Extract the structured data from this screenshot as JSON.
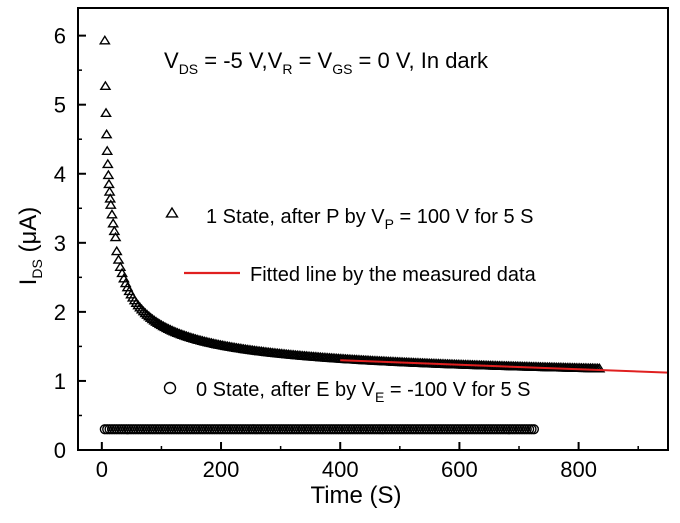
{
  "chart_data": {
    "type": "scatter",
    "annotation": {
      "parts": [
        "V",
        "DS",
        " = -5 V,V",
        "R",
        " = V",
        "GS",
        " = 0 V, In dark"
      ]
    },
    "xlabel": "Time (S)",
    "ylabel": {
      "main": "I",
      "sub": "DS",
      "rest": " (μA)"
    },
    "xlim": [
      -40,
      950
    ],
    "ylim": [
      0,
      6.4
    ],
    "x_ticks": [
      0,
      200,
      400,
      600,
      800
    ],
    "y_ticks": [
      0,
      1,
      2,
      3,
      4,
      5,
      6
    ],
    "legend": [
      {
        "marker": "triangle",
        "parts": [
          "1 State, after P by V",
          "P",
          " = 100 V for 5 S"
        ]
      },
      {
        "marker": "line",
        "color": "#e02020",
        "parts": [
          "Fitted line by the measured data"
        ]
      },
      {
        "marker": "circle",
        "parts": [
          "0 State, after E by V",
          "E",
          " = -100 V for 5 S"
        ]
      }
    ],
    "series": [
      {
        "marker": "triangle",
        "model": {
          "a": 0.9,
          "b": 5.3,
          "t0": 5,
          "p": 0.55
        },
        "x_range": [
          5,
          835
        ],
        "early_points": [
          [
            5,
            5.93
          ],
          [
            6,
            5.27
          ],
          [
            7,
            4.88
          ],
          [
            8,
            4.57
          ],
          [
            9,
            4.33
          ],
          [
            10,
            4.14
          ],
          [
            11,
            3.98
          ],
          [
            12,
            3.85
          ],
          [
            13,
            3.74
          ],
          [
            14,
            3.64
          ],
          [
            15,
            3.55
          ],
          [
            17,
            3.41
          ],
          [
            19,
            3.28
          ],
          [
            21,
            3.17
          ],
          [
            23,
            3.08
          ]
        ]
      },
      {
        "marker": "circle",
        "x_range": [
          5,
          725
        ],
        "value": 0.3
      },
      {
        "marker": "line",
        "color": "#e02020",
        "points": [
          [
            400,
            1.3
          ],
          [
            950,
            1.12
          ]
        ]
      }
    ]
  }
}
